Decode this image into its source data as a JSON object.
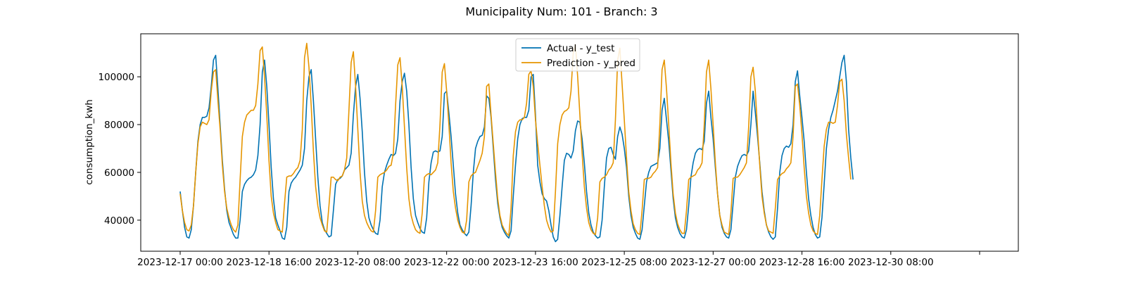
{
  "chart_data": {
    "type": "line",
    "title": "Municipality Num: 101 - Branch: 3",
    "xlabel": "",
    "ylabel": "consumption_kwh",
    "xlim": [
      "2023-12-17 00:00",
      "2024-01-01 00:00"
    ],
    "ylim": [
      27000,
      118000
    ],
    "x_ticks": [
      "2023-12-17 00:00",
      "2023-12-18 16:00",
      "2023-12-20 08:00",
      "2023-12-22 00:00",
      "2023-12-23 16:00",
      "2023-12-25 08:00",
      "2023-12-27 00:00",
      "2023-12-28 16:00",
      "2023-12-30 08:00",
      "2024-01-01 00:00"
    ],
    "x_tick_labels": [
      "2023-12-17 00:00",
      "2023-12-18 16:00",
      "2023-12-20 08:00",
      "2023-12-22 00:00",
      "2023-12-23 16:00",
      "2023-12-25 08:00",
      "2023-12-27 00:00",
      "2023-12-28 16:00",
      "2023-12-30 08:00",
      ""
    ],
    "y_ticks": [
      40000,
      60000,
      80000,
      100000
    ],
    "grid": false,
    "legend_position": "upper center",
    "sampling": "hourly, starting 2023-12-17 00:00",
    "series": [
      {
        "name": "Actual - y_test",
        "color": "#0072b2",
        "values": [
          52000,
          44000,
          37000,
          33000,
          32500,
          36000,
          46000,
          60000,
          73000,
          80000,
          83000,
          83000,
          83500,
          87000,
          96000,
          107000,
          109000,
          95000,
          80000,
          65000,
          53000,
          44000,
          39000,
          36500,
          34000,
          32500,
          32500,
          40000,
          52000,
          55000,
          56500,
          57500,
          58000,
          59000,
          61000,
          67000,
          80000,
          102000,
          107000,
          96000,
          80000,
          62000,
          49000,
          41000,
          38000,
          35500,
          32500,
          32000,
          37000,
          52000,
          55500,
          57000,
          58000,
          59500,
          61000,
          63000,
          70000,
          90000,
          100000,
          103000,
          90000,
          74000,
          58000,
          46000,
          39000,
          36000,
          34500,
          33000,
          33500,
          44000,
          55000,
          57000,
          57500,
          58500,
          61000,
          62000,
          63000,
          68000,
          84000,
          96000,
          101000,
          91000,
          77000,
          60000,
          48000,
          41000,
          38000,
          36000,
          34500,
          34000,
          40000,
          54000,
          60000,
          63000,
          65500,
          67500,
          67000,
          68000,
          74000,
          90000,
          98000,
          101500,
          94000,
          80000,
          62000,
          49000,
          42000,
          39000,
          36500,
          35000,
          34500,
          41000,
          56000,
          64000,
          68500,
          69000,
          68500,
          69000,
          75000,
          93000,
          94000,
          85000,
          75000,
          63000,
          51000,
          43000,
          38000,
          36000,
          34500,
          33500,
          35000,
          46000,
          60000,
          70000,
          73000,
          75000,
          75500,
          79000,
          92000,
          91000,
          83000,
          70000,
          57000,
          47000,
          41000,
          37000,
          35000,
          33500,
          32500,
          35500,
          50000,
          63000,
          74000,
          80000,
          82500,
          83000,
          83000,
          86000,
          100000,
          101000,
          84000,
          63000,
          56000,
          51000,
          49000,
          48000,
          44000,
          38000,
          33000,
          31000,
          32000,
          42000,
          54000,
          65000,
          68000,
          67500,
          66000,
          69000,
          77500,
          81500,
          81000,
          74000,
          64000,
          52000,
          43000,
          38000,
          35000,
          33500,
          32500,
          33000,
          40000,
          54000,
          66000,
          70000,
          70500,
          67500,
          65500,
          75000,
          79000,
          76000,
          70000,
          62000,
          50000,
          42000,
          37000,
          34500,
          32500,
          32000,
          36000,
          46000,
          56000,
          60000,
          62500,
          63000,
          63500,
          64000,
          70000,
          86000,
          91000,
          82000,
          73000,
          61000,
          49000,
          41000,
          37000,
          34500,
          33000,
          32500,
          36000,
          46000,
          58000,
          64000,
          68000,
          69500,
          70000,
          69500,
          73000,
          89000,
          94000,
          83000,
          74000,
          62000,
          51000,
          42000,
          37000,
          34500,
          33000,
          32500,
          36000,
          47000,
          58000,
          62500,
          65000,
          67000,
          67500,
          67000,
          69000,
          80000,
          94000,
          85000,
          75000,
          64000,
          52000,
          44000,
          38000,
          35000,
          33000,
          32000,
          33000,
          45000,
          60000,
          67000,
          70000,
          71000,
          70500,
          72000,
          80000,
          98000,
          102500,
          92000,
          83000,
          73000,
          60000,
          49000,
          42000,
          37000,
          34000,
          32500,
          33000,
          41000,
          55000,
          70000,
          78000,
          83000,
          86000,
          90000,
          94000,
          100000,
          106000,
          109000,
          98000,
          78000,
          66000,
          57000
        ]
      },
      {
        "name": "Prediction - y_pred",
        "color": "#e69500",
        "values": [
          51000,
          44000,
          39000,
          36000,
          35500,
          38000,
          46000,
          60000,
          72000,
          79000,
          81000,
          80500,
          80000,
          82000,
          94000,
          102000,
          103000,
          90000,
          78000,
          63000,
          52000,
          45000,
          41000,
          38000,
          36000,
          35000,
          38000,
          57000,
          75000,
          81000,
          84000,
          85000,
          86000,
          86000,
          88000,
          97000,
          111000,
          112500,
          100000,
          84000,
          65000,
          50000,
          43000,
          39000,
          36000,
          35500,
          35000,
          47000,
          58000,
          58500,
          58500,
          59500,
          61000,
          62000,
          65000,
          78000,
          108000,
          114000,
          104000,
          88000,
          69000,
          54000,
          46000,
          41000,
          38000,
          35500,
          35000,
          46000,
          58000,
          58000,
          57000,
          56500,
          58000,
          58500,
          61000,
          66000,
          86000,
          106000,
          110500,
          96000,
          78000,
          60000,
          48000,
          42000,
          39000,
          37000,
          35500,
          35000,
          44000,
          58000,
          59000,
          59500,
          60000,
          61000,
          62500,
          63000,
          68000,
          88000,
          105000,
          108000,
          96000,
          79000,
          62000,
          49000,
          42000,
          38500,
          36000,
          35000,
          34500,
          43000,
          58000,
          59000,
          59500,
          59000,
          60000,
          61000,
          64000,
          80000,
          102000,
          105500,
          94000,
          80000,
          64000,
          52000,
          45000,
          40000,
          37000,
          35000,
          34500,
          40000,
          56000,
          58500,
          59500,
          60000,
          62500,
          65000,
          68000,
          75000,
          96000,
          97000,
          84000,
          72000,
          60000,
          49000,
          42000,
          38000,
          36000,
          34500,
          33500,
          45000,
          67000,
          77000,
          81000,
          82000,
          82000,
          83000,
          89000,
          101000,
          102500,
          96000,
          82000,
          72000,
          63000,
          54000,
          46000,
          40000,
          37000,
          35000,
          35500,
          52000,
          72000,
          80000,
          84000,
          85500,
          86000,
          87000,
          94000,
          110000,
          113500,
          100000,
          84000,
          68000,
          54000,
          45000,
          39000,
          36000,
          34500,
          34000,
          41000,
          56000,
          57500,
          58000,
          59000,
          61000,
          62000,
          64000,
          82000,
          107000,
          112000,
          97000,
          82000,
          66000,
          52000,
          44000,
          38500,
          36000,
          34500,
          34000,
          44000,
          57000,
          57500,
          57500,
          58000,
          59500,
          60500,
          62000,
          80000,
          103000,
          107000,
          95000,
          80000,
          64000,
          51000,
          43000,
          38500,
          36000,
          34500,
          34500,
          44000,
          57000,
          58000,
          58500,
          59000,
          61000,
          62000,
          64000,
          80000,
          102000,
          107000,
          95000,
          80000,
          64000,
          51000,
          42000,
          38000,
          35000,
          34500,
          34000,
          43000,
          57500,
          58000,
          58000,
          59000,
          60500,
          62000,
          64000,
          79000,
          100000,
          104000,
          94000,
          78000,
          63000,
          50000,
          43000,
          38000,
          35500,
          35000,
          34500,
          45000,
          57000,
          58500,
          59500,
          60000,
          61500,
          62500,
          64000,
          75000,
          96000,
          97000,
          88000,
          76000,
          62000,
          50000,
          43000,
          38000,
          35500,
          34500,
          34000,
          42000,
          57000,
          71000,
          78000,
          81000,
          81000,
          80500,
          81000,
          88000,
          98000,
          99000,
          90000,
          76000,
          66000,
          57000
        ]
      }
    ]
  }
}
